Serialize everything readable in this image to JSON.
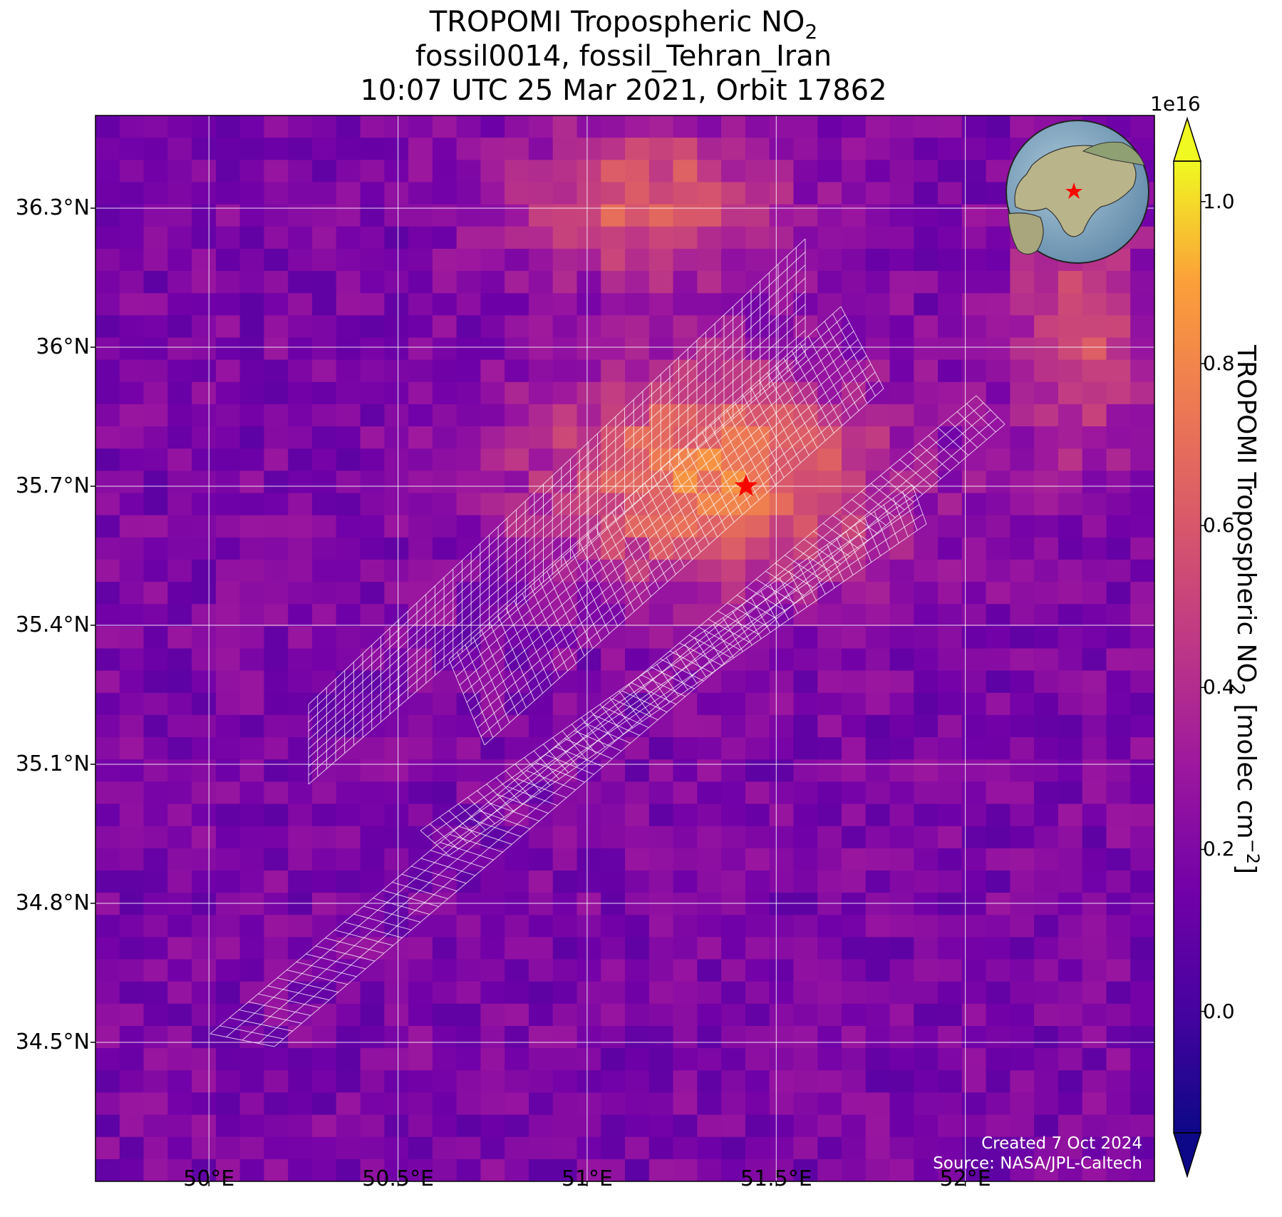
{
  "title": {
    "line1_prefix": "TROPOMI Tropospheric NO",
    "line1_sub": "2",
    "line2": "fossil0014, fossil_Tehran_Iran",
    "line3": "10:07 UTC 25 Mar 2021, Orbit 17862"
  },
  "map": {
    "lon_range": [
      49.7,
      52.5
    ],
    "lat_range": [
      34.2,
      36.5
    ],
    "lat_ticks": [
      {
        "value": 36.3,
        "label": "36.3°N"
      },
      {
        "value": 36.0,
        "label": "36°N"
      },
      {
        "value": 35.7,
        "label": "35.7°N"
      },
      {
        "value": 35.4,
        "label": "35.4°N"
      },
      {
        "value": 35.1,
        "label": "35.1°N"
      },
      {
        "value": 34.8,
        "label": "34.8°N"
      },
      {
        "value": 34.5,
        "label": "34.5°N"
      }
    ],
    "lon_ticks": [
      {
        "value": 50.0,
        "label": "50°E"
      },
      {
        "value": 50.5,
        "label": "50.5°E"
      },
      {
        "value": 51.0,
        "label": "51°E"
      },
      {
        "value": 51.5,
        "label": "51.5°E"
      },
      {
        "value": 52.0,
        "label": "52°E"
      }
    ],
    "grid": true,
    "target_marker": {
      "lon": 51.42,
      "lat": 35.7,
      "symbol": "star",
      "color": "#ff0000"
    },
    "globe_inset_location": "top-right"
  },
  "colorbar": {
    "label_prefix": "TROPOMI Tropospheric NO",
    "label_sub": "2",
    "label_suffix": " [molec cm",
    "label_sup": "−2",
    "label_end": "]",
    "exponent": "1e16",
    "vmin": -0.15,
    "vmax": 1.05,
    "ticks": [
      {
        "value": 0.0,
        "label": "0.0"
      },
      {
        "value": 0.2,
        "label": "0.2"
      },
      {
        "value": 0.4,
        "label": "0.4"
      },
      {
        "value": 0.6,
        "label": "0.6"
      },
      {
        "value": 0.8,
        "label": "0.8"
      },
      {
        "value": 1.0,
        "label": "1.0"
      }
    ],
    "colormap": "plasma",
    "extend": "both"
  },
  "credits": {
    "line1": "Created 7 Oct 2024",
    "line2": "Source: NASA/JPL-Caltech"
  }
}
